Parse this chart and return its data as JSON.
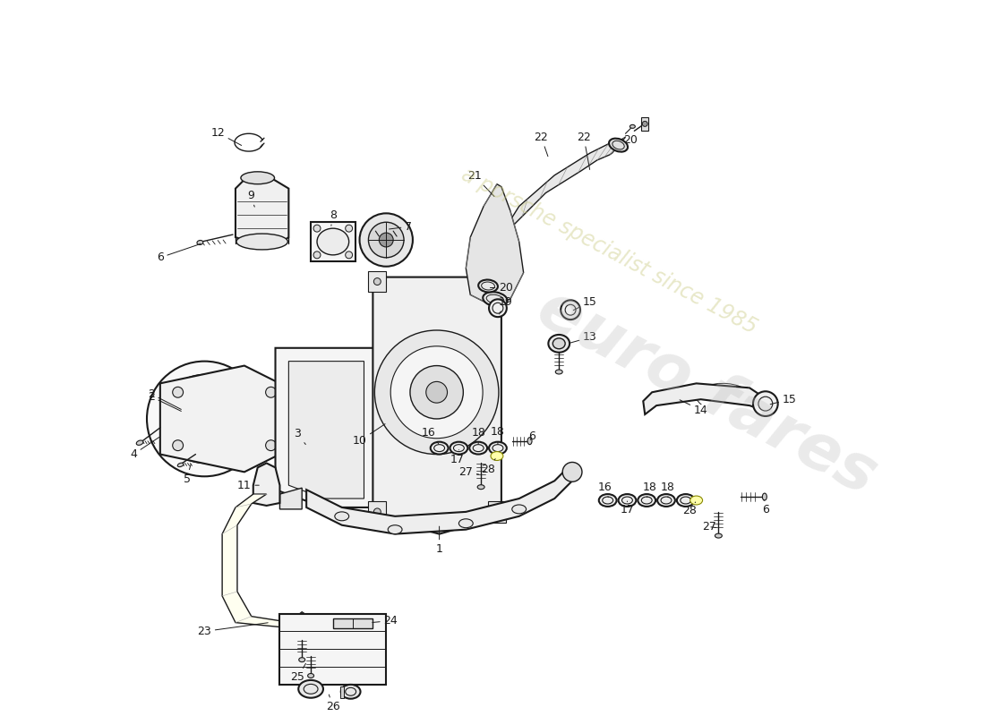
{
  "bg": "#ffffff",
  "lc": "#1a1a1a",
  "wm1": "euro fares",
  "wm2": "a porsche specialist since 1985",
  "figsize": [
    11.0,
    8.0
  ],
  "dpi": 100
}
